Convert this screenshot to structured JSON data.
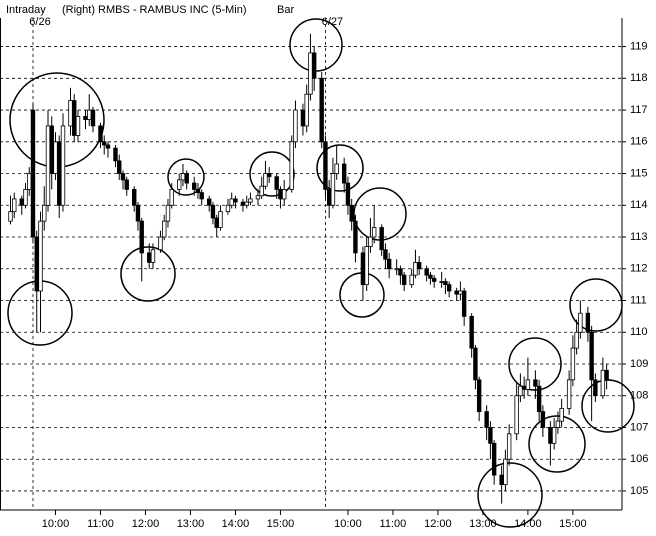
{
  "chart_data": {
    "type": "candlestick",
    "header": [
      "Intraday",
      "(Right)",
      "RMBS - RAMBUS INC  (5-Min)",
      "Bar"
    ],
    "markers": [
      {
        "x": 0,
        "label": "6/26"
      },
      {
        "x": 78,
        "label": "6/27"
      }
    ],
    "x": [
      -6,
      -5,
      -3,
      -2,
      -1,
      0,
      1,
      2,
      3,
      4,
      5,
      6,
      7,
      8,
      10,
      11,
      12,
      14,
      15,
      16,
      18,
      19,
      20,
      22,
      23,
      24,
      25,
      27,
      28,
      29,
      31,
      32,
      34,
      35,
      36,
      37,
      39,
      40,
      41,
      43,
      44,
      45,
      47,
      48,
      49,
      50,
      52,
      53,
      54,
      56,
      57,
      58,
      60,
      61,
      62,
      63,
      65,
      66,
      67,
      69,
      70,
      72,
      73,
      74,
      75,
      77,
      78,
      79,
      80,
      81,
      83,
      84,
      85,
      86,
      88,
      89,
      90,
      91,
      93,
      94,
      95,
      97,
      98,
      99,
      101,
      102,
      103,
      105,
      106,
      107,
      109,
      110,
      111,
      113,
      114,
      115,
      117,
      118,
      119,
      121,
      122,
      123,
      125,
      126,
      127,
      129,
      130,
      131,
      132,
      134,
      135,
      136,
      138,
      139,
      140,
      141,
      143,
      144,
      145,
      146,
      148,
      149,
      150,
      152,
      153
    ],
    "ohlc": [
      [
        113.5,
        114.3,
        113.4,
        113.8
      ],
      [
        113.8,
        114.4,
        113.6,
        114.2
      ],
      [
        114.2,
        114.3,
        113.7,
        114.0
      ],
      [
        114.0,
        114.7,
        113.9,
        114.5
      ],
      [
        114.5,
        115.2,
        114.3,
        115.0
      ],
      [
        117.0,
        117.2,
        112.8,
        113.0
      ],
      [
        113.0,
        113.2,
        110.0,
        111.3
      ],
      [
        111.3,
        113.8,
        110.0,
        113.5
      ],
      [
        113.5,
        114.6,
        113.2,
        114.0
      ],
      [
        114.0,
        117.0,
        113.8,
        116.5
      ],
      [
        116.5,
        116.8,
        114.5,
        115.0
      ],
      [
        115.0,
        116.3,
        114.8,
        116.0
      ],
      [
        116.0,
        116.2,
        113.6,
        114.0
      ],
      [
        114.0,
        116.9,
        113.8,
        116.5
      ],
      [
        116.5,
        117.7,
        116.2,
        117.3
      ],
      [
        117.3,
        117.5,
        116.0,
        116.2
      ],
      [
        116.2,
        117.0,
        116.0,
        116.8
      ],
      [
        116.8,
        117.0,
        116.4,
        116.7
      ],
      [
        116.7,
        117.5,
        116.5,
        117.0
      ],
      [
        117.0,
        117.1,
        116.3,
        116.5
      ],
      [
        116.5,
        116.6,
        115.8,
        116.0
      ],
      [
        116.0,
        116.2,
        115.6,
        115.9
      ],
      [
        115.9,
        116.0,
        115.5,
        115.8
      ],
      [
        115.8,
        115.9,
        115.2,
        115.4
      ],
      [
        115.4,
        115.6,
        114.8,
        115.0
      ],
      [
        115.0,
        115.1,
        114.5,
        114.8
      ],
      [
        114.8,
        114.9,
        114.3,
        114.5
      ],
      [
        114.5,
        114.6,
        113.8,
        114.0
      ],
      [
        114.0,
        114.1,
        113.2,
        113.5
      ],
      [
        113.5,
        113.6,
        111.6,
        112.5
      ],
      [
        112.5,
        112.8,
        112.0,
        112.2
      ],
      [
        112.2,
        112.8,
        112.0,
        112.6
      ],
      [
        112.6,
        113.2,
        112.5,
        113.0
      ],
      [
        113.0,
        113.7,
        112.9,
        113.5
      ],
      [
        113.5,
        114.2,
        113.3,
        114.0
      ],
      [
        114.0,
        114.7,
        113.9,
        114.5
      ],
      [
        114.5,
        115.0,
        114.3,
        114.8
      ],
      [
        114.8,
        115.3,
        114.6,
        115.0
      ],
      [
        115.0,
        115.1,
        114.5,
        114.7
      ],
      [
        114.7,
        114.9,
        114.3,
        114.5
      ],
      [
        114.5,
        114.7,
        114.2,
        114.4
      ],
      [
        114.4,
        114.5,
        114.0,
        114.2
      ],
      [
        114.2,
        114.3,
        113.8,
        114.0
      ],
      [
        114.0,
        114.1,
        113.4,
        113.6
      ],
      [
        113.6,
        113.7,
        113.0,
        113.3
      ],
      [
        113.3,
        114.0,
        113.2,
        113.8
      ],
      [
        113.8,
        114.2,
        113.7,
        114.0
      ],
      [
        114.0,
        114.4,
        113.9,
        114.2
      ],
      [
        114.2,
        114.3,
        113.9,
        114.1
      ],
      [
        114.1,
        114.2,
        113.8,
        114.0
      ],
      [
        114.0,
        114.3,
        113.9,
        114.1
      ],
      [
        114.1,
        114.4,
        114.0,
        114.2
      ],
      [
        114.2,
        114.5,
        114.0,
        114.3
      ],
      [
        114.3,
        114.9,
        114.2,
        114.6
      ],
      [
        114.6,
        115.4,
        114.5,
        115.0
      ],
      [
        115.0,
        115.2,
        114.7,
        114.9
      ],
      [
        114.9,
        115.0,
        114.2,
        114.5
      ],
      [
        114.5,
        114.6,
        113.9,
        114.2
      ],
      [
        114.2,
        114.8,
        114.0,
        114.5
      ],
      [
        114.5,
        116.2,
        114.4,
        116.0
      ],
      [
        116.0,
        117.3,
        115.8,
        117.0
      ],
      [
        117.0,
        117.2,
        116.2,
        116.5
      ],
      [
        116.5,
        117.8,
        116.3,
        117.5
      ],
      [
        117.5,
        119.4,
        117.3,
        118.8
      ],
      [
        118.8,
        119.0,
        117.6,
        118.0
      ],
      [
        118.0,
        118.2,
        115.8,
        116.0
      ],
      [
        116.0,
        116.2,
        114.2,
        114.5
      ],
      [
        114.5,
        114.8,
        113.6,
        114.0
      ],
      [
        114.0,
        115.5,
        113.9,
        115.0
      ],
      [
        115.0,
        115.9,
        114.8,
        115.3
      ],
      [
        115.3,
        115.5,
        114.4,
        114.7
      ],
      [
        114.7,
        114.9,
        113.7,
        114.0
      ],
      [
        114.0,
        114.2,
        113.2,
        113.5
      ],
      [
        113.5,
        113.7,
        112.2,
        112.5
      ],
      [
        112.5,
        112.7,
        111.0,
        111.5
      ],
      [
        111.5,
        113.0,
        111.3,
        112.7
      ],
      [
        112.7,
        113.6,
        112.5,
        113.0
      ],
      [
        113.0,
        114.0,
        112.8,
        113.3
      ],
      [
        113.3,
        113.4,
        112.4,
        112.6
      ],
      [
        112.6,
        112.8,
        112.0,
        112.3
      ],
      [
        112.3,
        112.5,
        111.7,
        112.0
      ],
      [
        112.0,
        112.3,
        111.8,
        112.0
      ],
      [
        112.0,
        112.1,
        111.5,
        111.8
      ],
      [
        111.8,
        111.9,
        111.3,
        111.5
      ],
      [
        111.5,
        112.0,
        111.4,
        111.8
      ],
      [
        111.8,
        112.6,
        111.7,
        112.2
      ],
      [
        112.2,
        112.4,
        111.8,
        112.0
      ],
      [
        112.0,
        112.1,
        111.6,
        111.8
      ],
      [
        111.8,
        111.9,
        111.5,
        111.7
      ],
      [
        111.7,
        111.8,
        111.4,
        111.6
      ],
      [
        111.6,
        111.9,
        111.4,
        111.6
      ],
      [
        111.6,
        111.7,
        111.2,
        111.5
      ],
      [
        111.5,
        111.6,
        111.1,
        111.3
      ],
      [
        111.3,
        111.4,
        111.0,
        111.2
      ],
      [
        111.2,
        111.6,
        111.0,
        111.3
      ],
      [
        111.3,
        111.4,
        110.2,
        110.5
      ],
      [
        110.5,
        110.6,
        109.2,
        109.5
      ],
      [
        109.5,
        109.6,
        108.2,
        108.5
      ],
      [
        108.5,
        108.6,
        107.2,
        107.5
      ],
      [
        107.5,
        107.7,
        106.6,
        107.0
      ],
      [
        107.0,
        107.2,
        106.0,
        106.5
      ],
      [
        106.5,
        106.6,
        105.2,
        105.5
      ],
      [
        105.5,
        105.8,
        104.6,
        105.2
      ],
      [
        105.2,
        106.3,
        105.0,
        106.0
      ],
      [
        106.0,
        107.1,
        105.8,
        106.8
      ],
      [
        106.8,
        108.4,
        106.6,
        108.0
      ],
      [
        108.0,
        108.7,
        107.8,
        108.3
      ],
      [
        108.3,
        108.6,
        107.9,
        108.2
      ],
      [
        108.2,
        109.2,
        108.0,
        108.5
      ],
      [
        108.5,
        108.8,
        107.9,
        108.3
      ],
      [
        108.3,
        108.5,
        107.2,
        107.5
      ],
      [
        107.5,
        107.7,
        106.7,
        107.0
      ],
      [
        107.0,
        107.2,
        105.8,
        106.5
      ],
      [
        106.5,
        107.3,
        106.3,
        107.0
      ],
      [
        107.0,
        107.5,
        106.8,
        107.2
      ],
      [
        107.2,
        107.9,
        107.0,
        107.6
      ],
      [
        107.6,
        108.8,
        107.4,
        108.5
      ],
      [
        108.5,
        109.9,
        108.3,
        109.5
      ],
      [
        109.5,
        110.4,
        109.3,
        110.0
      ],
      [
        110.0,
        111.0,
        109.8,
        110.6
      ],
      [
        110.6,
        110.8,
        109.7,
        110.0
      ],
      [
        110.0,
        110.2,
        107.2,
        108.5
      ],
      [
        108.5,
        108.7,
        107.8,
        108.0
      ],
      [
        108.0,
        109.2,
        107.9,
        108.8
      ],
      [
        108.8,
        109.0,
        108.2,
        108.5
      ]
    ],
    "up_color": "#ffffff",
    "down_color": "#000000",
    "xlim": [
      -8.8,
      157.1
    ],
    "xticks": [
      {
        "value": 6,
        "label": "10:00"
      },
      {
        "value": 18,
        "label": "11:00"
      },
      {
        "value": 30,
        "label": "12:00"
      },
      {
        "value": 42,
        "label": "13:00"
      },
      {
        "value": 54,
        "label": "14:00"
      },
      {
        "value": 66,
        "label": "15:00"
      },
      {
        "value": 84,
        "label": "10:00"
      },
      {
        "value": 96,
        "label": "11:00"
      },
      {
        "value": 108,
        "label": "12:00"
      },
      {
        "value": 120,
        "label": "13:00"
      },
      {
        "value": 132,
        "label": "14:00"
      },
      {
        "value": 144,
        "label": "15:00"
      }
    ],
    "ylim": [
      104.4,
      119.9
    ],
    "yticks": [
      105,
      106,
      107,
      108,
      109,
      110,
      111,
      112,
      113,
      114,
      115,
      116,
      117,
      118,
      119
    ],
    "grid": true
  }
}
